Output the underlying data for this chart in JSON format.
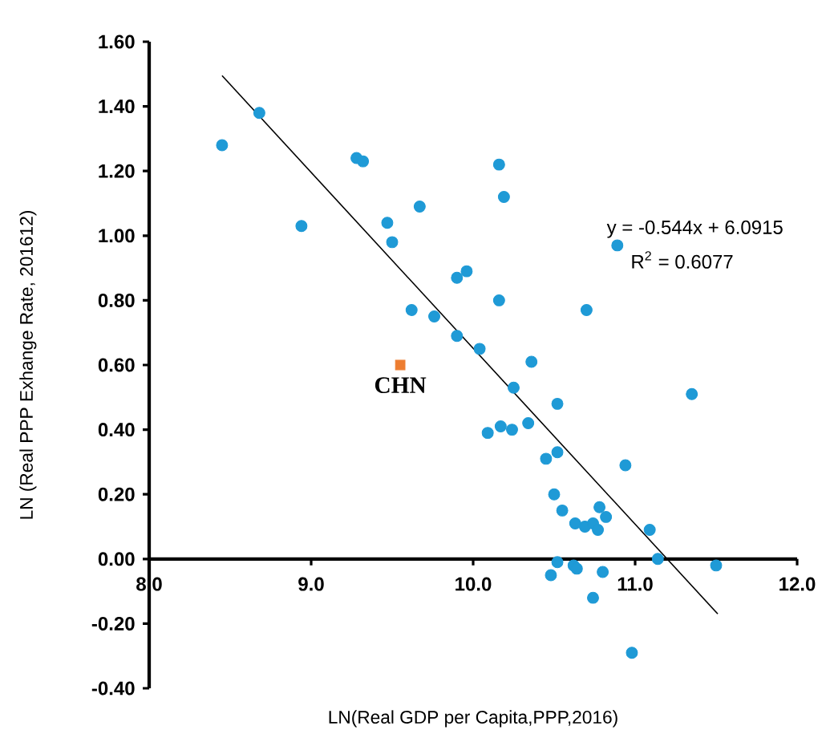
{
  "chart_data": {
    "type": "scatter",
    "xlabel": "LN(Real GDP  per Capita,PPP,2016)",
    "ylabel": "LN (Real PPP Exhange Rate, 201612)",
    "xlim": [
      8.0,
      12.0
    ],
    "ylim": [
      -0.4,
      1.6
    ],
    "xticks": [
      {
        "value": 8.0,
        "label": "8.0"
      },
      {
        "value": 9.0,
        "label": "9.0"
      },
      {
        "value": 10.0,
        "label": "10.0"
      },
      {
        "value": 11.0,
        "label": "11.0"
      },
      {
        "value": 12.0,
        "label": "12.0"
      }
    ],
    "yticks": [
      {
        "value": -0.4,
        "label": "-0.40"
      },
      {
        "value": -0.2,
        "label": "-0.20"
      },
      {
        "value": 0.0,
        "label": "0.00"
      },
      {
        "value": 0.2,
        "label": "0.20"
      },
      {
        "value": 0.4,
        "label": "0.40"
      },
      {
        "value": 0.6,
        "label": "0.60"
      },
      {
        "value": 0.8,
        "label": "0.80"
      },
      {
        "value": 1.0,
        "label": "1.00"
      },
      {
        "value": 1.2,
        "label": "1.20"
      },
      {
        "value": 1.4,
        "label": "1.40"
      },
      {
        "value": 1.6,
        "label": "1.60"
      }
    ],
    "marker": "circle",
    "series": [
      {
        "color": "#1f9ad6",
        "x": [
          8.45,
          8.68,
          8.94,
          9.28,
          9.32,
          9.67,
          9.47,
          9.5,
          9.9,
          9.96,
          9.62,
          9.76,
          9.9,
          10.04,
          10.16,
          10.19,
          10.89,
          10.16,
          10.7,
          10.36,
          10.25,
          10.52,
          11.35,
          10.09,
          10.17,
          10.24,
          10.34,
          10.45,
          10.52,
          10.94,
          10.5,
          10.55,
          10.63,
          10.69,
          10.74,
          10.78,
          10.82,
          10.77,
          11.09,
          11.14,
          11.5,
          10.52,
          10.48,
          10.62,
          10.64,
          10.8,
          10.74,
          10.98
        ],
        "values": [
          1.28,
          1.38,
          1.03,
          1.24,
          1.23,
          1.09,
          1.04,
          0.98,
          0.87,
          0.89,
          0.77,
          0.75,
          0.69,
          0.65,
          1.22,
          1.12,
          0.97,
          0.8,
          0.77,
          0.61,
          0.53,
          0.48,
          0.51,
          0.39,
          0.41,
          0.4,
          0.42,
          0.31,
          0.33,
          0.29,
          0.2,
          0.15,
          0.11,
          0.1,
          0.11,
          0.16,
          0.13,
          0.09,
          0.09,
          0.0,
          -0.02,
          -0.01,
          -0.05,
          -0.02,
          -0.03,
          -0.04,
          -0.12,
          -0.29
        ]
      },
      {
        "color": "#ed7d31",
        "marker": "square",
        "x": [
          9.55
        ],
        "values": [
          0.6
        ]
      },
      {
        "type": "line",
        "color": "#000000",
        "marker": "none",
        "x": [
          8.45,
          11.51
        ],
        "values": [
          1.495,
          -0.17
        ]
      }
    ],
    "annotations": [
      {
        "text": "CHN",
        "x": 9.55,
        "y": 0.6
      },
      "y = -0.544x + 6.0915",
      "R$^{2}$ = 0.6077"
    ]
  }
}
